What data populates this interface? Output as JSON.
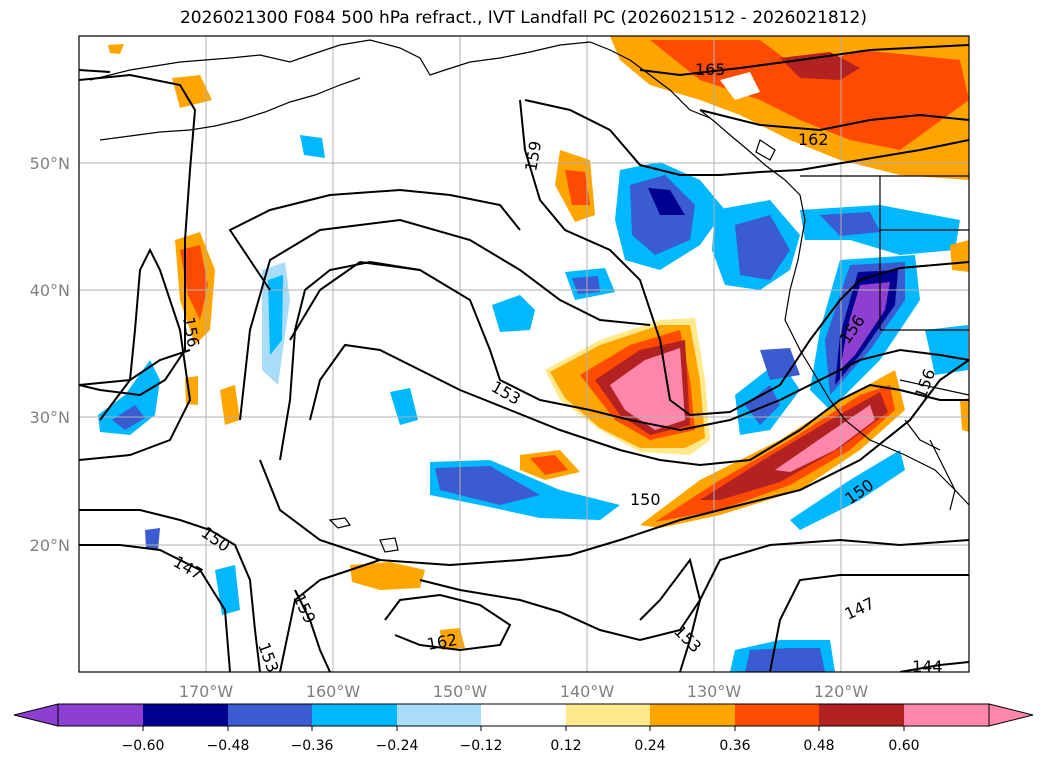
{
  "title": "2026021300 F084 500 hPa refract., IVT Landfall PC (2026021512 - 2026021812)",
  "lat_labels": [
    "50°N",
    "40°N",
    "30°N",
    "20°N"
  ],
  "lon_labels": [
    "170°W",
    "160°W",
    "150°W",
    "140°W",
    "130°W",
    "120°W"
  ],
  "colorbar": {
    "ticks": [
      "−0.60",
      "−0.48",
      "−0.36",
      "−0.24",
      "−0.12",
      "0.12",
      "0.24",
      "0.36",
      "0.48",
      "0.60"
    ],
    "colors": [
      "#8c3fd0",
      "#000090",
      "#3b5cd0",
      "#00b8ff",
      "#a8dcf8",
      "#ffffff",
      "#ffe98c",
      "#ffa500",
      "#ff4b00",
      "#b22222",
      "#ff88aa"
    ]
  },
  "contour_labels": [
    "165",
    "162",
    "159",
    "156",
    "156",
    "156",
    "153",
    "150",
    "150",
    "150",
    "147",
    "147",
    "159",
    "153",
    "162",
    "153",
    "144"
  ]
}
